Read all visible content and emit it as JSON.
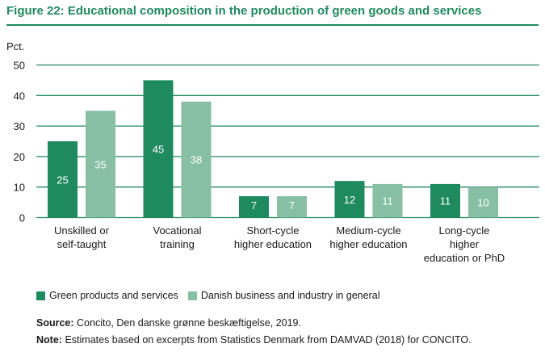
{
  "title": "Figure 22: Educational composition in the production of green goods and services",
  "chart_data": {
    "type": "bar",
    "ylabel": "Pct.",
    "ylim": [
      0,
      50
    ],
    "yticks": [
      0,
      10,
      20,
      30,
      40,
      50
    ],
    "grid": true,
    "legend_position": "bottom-left",
    "categories": [
      [
        "Unskilled or",
        "self-taught"
      ],
      [
        "Vocational",
        "training"
      ],
      [
        "Short-cycle",
        "higher education"
      ],
      [
        "Medium-cycle",
        "higher education"
      ],
      [
        "Long-cycle",
        "higher",
        "education or PhD"
      ]
    ],
    "series": [
      {
        "name": "Green products and services",
        "color": "#1f8a5f",
        "values": [
          25,
          45,
          7,
          12,
          11
        ]
      },
      {
        "name": "Danish business and industry in general",
        "color": "#86bfa4",
        "values": [
          35,
          38,
          7,
          11,
          10
        ]
      }
    ]
  },
  "source": {
    "label": "Source:",
    "text": "Concito, Den danske grønne beskæftigelse, 2019."
  },
  "note": {
    "label": "Note:",
    "text": "Estimates based on excerpts from Statistics Denmark from DAMVAD (2018) for CONCITO."
  }
}
